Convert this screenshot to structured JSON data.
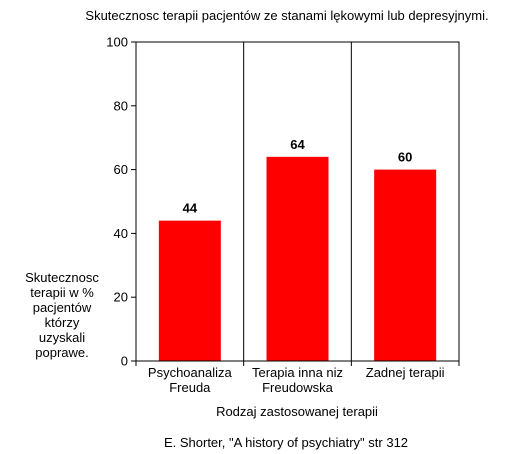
{
  "chart_data": {
    "type": "bar",
    "title": "Skutecznosc terapii pacjentów ze stanami lękowymi lub depresyjnymi.",
    "xlabel": "Rodzaj zastosowanej terapii",
    "ylabel": "Skutecznosc\nterapii w %\npacjentów\nktórzy\nuzyskali\npoprawe.",
    "categories": [
      "Psychoanaliza\nFreuda",
      "Terapia inna niz\nFreudowska",
      "Zadnej terapii"
    ],
    "values": [
      44,
      64,
      60
    ],
    "data_labels": [
      "44",
      "64",
      "60"
    ],
    "ylim": [
      0,
      100
    ],
    "yticks": [
      0,
      20,
      40,
      60,
      80,
      100
    ],
    "grid": "vertical lines between categories",
    "bar_color": "#ff0000",
    "source": "E. Shorter, \"A history of psychiatry\" str 312"
  }
}
